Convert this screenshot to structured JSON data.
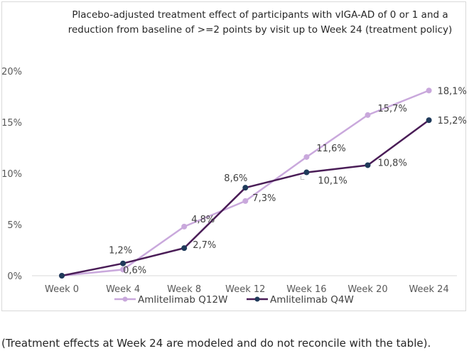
{
  "chart_data": {
    "type": "line",
    "title": [
      "Placebo-adjusted treatment effect of participants with vIGA-AD of 0 or 1 and a",
      "reduction from baseline of >=2 points by visit up to Week 24 (treatment policy)"
    ],
    "categories": [
      "Week 0",
      "Week 4",
      "Week 8",
      "Week 12",
      "Week 16",
      "Week 20",
      "Week 24"
    ],
    "ylim": [
      0,
      20
    ],
    "yticks": [
      0,
      5,
      10,
      15,
      20
    ],
    "ytick_labels": [
      "0%",
      "5%",
      "10%",
      "15%",
      "20%"
    ],
    "series": [
      {
        "name": "Amlitelimab Q12W",
        "color": "#c9a8dc",
        "values": [
          0,
          0.6,
          4.8,
          7.3,
          11.6,
          15.7,
          18.1
        ],
        "labels": [
          "",
          "0,6%",
          "4,8%",
          "7,3%",
          "11,6%",
          "15,7%",
          "18,1%"
        ]
      },
      {
        "name": "Amlitelimab Q4W",
        "color": "#4a1d57",
        "values": [
          0,
          1.2,
          2.7,
          8.6,
          10.1,
          10.8,
          15.2
        ],
        "labels": [
          "",
          "1,2%",
          "2,7%",
          "8,6%",
          "10,1%",
          "10,8%",
          "15,2%"
        ]
      }
    ],
    "legend_position": "bottom"
  },
  "footnote": "(Treatment effects at Week 24 are modeled and do not reconcile with the table)."
}
